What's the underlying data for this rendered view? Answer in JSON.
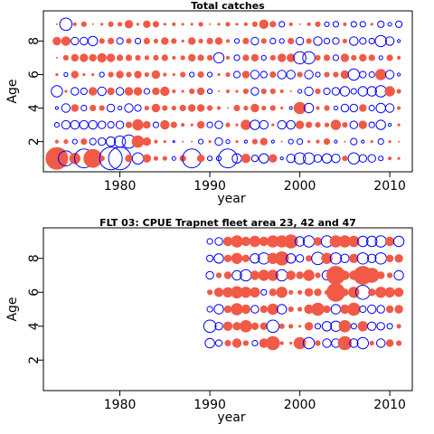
{
  "chart_data": [
    {
      "type": "scatter",
      "subtype": "bubble",
      "title": "Total catches",
      "xlabel": "year",
      "ylabel": "Age",
      "xlim": [
        1971.5,
        2012.5
      ],
      "ylim": [
        0.2,
        9.8
      ],
      "xticks": [
        1980,
        1990,
        2000,
        2010
      ],
      "yticks": [
        2,
        4,
        6,
        8
      ],
      "x_start": 1973,
      "x_end": 2011,
      "ages": [
        1,
        2,
        3,
        4,
        5,
        6,
        7,
        8,
        9
      ],
      "colors": {
        "positive": "#f05a46",
        "negative": "#0000ff"
      },
      "residuals": {
        "1": [
          2.4,
          -1.6,
          1.2,
          -2.0,
          2.0,
          0.6,
          -2.4,
          -2.4,
          0.8,
          -1.2,
          0.9,
          0.5,
          0.5,
          -0.4,
          0.7,
          -2.0,
          0.8,
          -0.5,
          -0.5,
          -2.0,
          -1.0,
          1.0,
          -0.7,
          -1.0,
          0.9,
          -0.3,
          -0.9,
          -1.2,
          -1.2,
          -0.8,
          -1.0,
          -0.9,
          0.6,
          -1.2,
          -0.8,
          -0.8,
          -0.5,
          0.4,
          0.3
        ],
        "2": [
          0.4,
          0.5,
          -0.5,
          0.7,
          -0.7,
          -0.8,
          -1.0,
          -1.2,
          -1.4,
          1.3,
          0.9,
          0.4,
          0.3,
          -0.2,
          0.2,
          0.2,
          -0.5,
          0.3,
          -0.8,
          -0.4,
          0.3,
          -0.3,
          0.6,
          0.8,
          -0.3,
          0.2,
          -0.5,
          -0.6,
          0.3,
          0.4,
          0.7,
          -0.3,
          0.2,
          -0.7,
          -0.3,
          0.3,
          -0.6,
          0.3,
          0.2
        ],
        "3": [
          -0.5,
          -0.9,
          -0.9,
          -0.9,
          -0.9,
          -0.8,
          -0.7,
          -0.8,
          0.7,
          1.2,
          0.8,
          -0.6,
          1.0,
          0.7,
          0.4,
          0.3,
          0.8,
          -0.6,
          -0.8,
          0.5,
          0.3,
          1.1,
          -1.0,
          -0.9,
          0.3,
          -0.9,
          -0.9,
          0.9,
          0.7,
          0.6,
          0.5,
          1.1,
          0.6,
          -0.8,
          0.9,
          -0.6,
          -1.0,
          -0.3,
          0.3
        ],
        "4": [
          -0.3,
          -0.9,
          0.8,
          -0.6,
          0.7,
          0.6,
          -0.8,
          -0.4,
          -0.9,
          -0.7,
          0.5,
          0.9,
          0.6,
          0.5,
          0.7,
          0.8,
          0.8,
          0.6,
          0.4,
          0.2,
          0.7,
          0.5,
          0.9,
          0.5,
          0.6,
          0.3,
          -0.3,
          1.3,
          -1.0,
          0.4,
          0.6,
          -0.4,
          -0.8,
          -0.8,
          0.8,
          -0.6,
          -1.0,
          -0.9,
          0.4
        ],
        "5": [
          -1.2,
          0.3,
          -0.8,
          -0.7,
          0.9,
          -0.9,
          0.8,
          -0.8,
          0.9,
          0.9,
          -0.6,
          0.8,
          1.0,
          0.4,
          0.3,
          0.6,
          0.8,
          -0.5,
          0.2,
          0.4,
          0.3,
          0.6,
          -0.8,
          0.6,
          0.6,
          0.4,
          0.2,
          -0.4,
          -0.9,
          0.6,
          -0.7,
          -0.8,
          -1.0,
          -0.6,
          -1.0,
          -1.0,
          -1.2,
          1.1,
          0.5
        ],
        "6": [
          0.3,
          -0.4,
          0.8,
          0.3,
          0.3,
          -0.5,
          0.6,
          0.8,
          0.6,
          0.8,
          0.5,
          0.9,
          0.4,
          0.3,
          0.6,
          -0.5,
          0.7,
          -0.5,
          0.3,
          0.5,
          -0.7,
          0.8,
          -0.9,
          -0.7,
          0.7,
          -0.9,
          -0.9,
          0.6,
          -0.9,
          -0.5,
          0.6,
          0.6,
          0.9,
          -1.2,
          -0.7,
          -0.6,
          1.2,
          -0.9,
          -0.3
        ],
        "7": [
          0.2,
          0.6,
          0.8,
          0.9,
          0.8,
          1.0,
          0.9,
          0.7,
          0.7,
          0.6,
          0.5,
          0.6,
          0.7,
          0.4,
          0.5,
          0.8,
          0.7,
          0.6,
          -1.1,
          0.4,
          -0.6,
          0.7,
          0.8,
          -0.5,
          0.6,
          0.9,
          0.9,
          -1.3,
          -1.3,
          0.6,
          0.7,
          -0.6,
          0.9,
          0.6,
          0.8,
          0.7,
          -0.4,
          0.7,
          0.4
        ],
        "8": [
          0.9,
          1.0,
          -0.8,
          -0.8,
          -1.0,
          0.6,
          0.7,
          -0.7,
          0.6,
          -0.6,
          0.7,
          0.5,
          0.8,
          0.6,
          0.3,
          0.8,
          0.5,
          0.7,
          0.8,
          0.4,
          -0.5,
          0.7,
          -0.8,
          0.6,
          -0.6,
          -0.5,
          0.7,
          -0.8,
          0.6,
          -0.9,
          -0.6,
          -0.7,
          0.5,
          -0.9,
          -0.7,
          -0.6,
          -1.2,
          -0.9,
          -0.3
        ],
        "9": [
          0.2,
          -1.3,
          0.4,
          0.6,
          0.2,
          0.3,
          0.6,
          0.5,
          0.9,
          0.3,
          0.8,
          0.7,
          0.3,
          0.4,
          0.3,
          0.3,
          0.5,
          0.2,
          0.3,
          0.5,
          0.3,
          0.4,
          0.6,
          1.0,
          0.7,
          -0.6,
          0.4,
          0.2,
          0.4,
          0.6,
          -0.5,
          -0.6,
          0.4,
          -0.6,
          -0.6,
          0.3,
          -0.7,
          -0.4,
          -0.7
        ]
      }
    },
    {
      "type": "scatter",
      "subtype": "bubble",
      "title": "FLT 03: CPUE Trapnet fleet area 23, 42 and 47",
      "xlabel": "year",
      "ylabel": "Age",
      "xlim": [
        1971.5,
        2012.5
      ],
      "ylim": [
        0.2,
        9.8
      ],
      "xticks": [
        1980,
        1990,
        2000,
        2010
      ],
      "yticks": [
        2,
        4,
        6,
        8
      ],
      "x_start": 1990,
      "x_end": 2011,
      "ages": [
        3,
        4,
        5,
        6,
        7,
        8,
        9
      ],
      "colors": {
        "positive": "#f05a46",
        "negative": "#0000ff"
      },
      "residuals": {
        "3": [
          -1.0,
          -0.7,
          0.7,
          1.0,
          0.6,
          -0.6,
          1.0,
          1.5,
          0.4,
          0.3,
          1.3,
          -1.2,
          0.6,
          -0.9,
          -0.9,
          1.5,
          -0.9,
          -1.2,
          0.5,
          -0.9,
          0.8,
          0.6
        ],
        "4": [
          -1.3,
          -0.8,
          1.0,
          0.9,
          1.3,
          0.8,
          0.8,
          -1.3,
          0.6,
          0.5,
          0.3,
          0.9,
          -0.6,
          -1.0,
          -1.1,
          1.3,
          -0.6,
          1.1,
          -0.9,
          -0.8,
          -0.6,
          0.5
        ],
        "5": [
          -0.6,
          -1.0,
          0.8,
          1.3,
          1.0,
          -0.8,
          0.8,
          1.2,
          -1.0,
          0.6,
          0.5,
          1.0,
          1.4,
          0.8,
          -1.0,
          1.0,
          1.4,
          -0.7,
          -0.9,
          -0.8,
          0.8,
          0.9
        ],
        "6": [
          0.6,
          1.0,
          1.1,
          1.3,
          1.2,
          1.1,
          -0.6,
          0.8,
          1.2,
          0.5,
          0.5,
          0.9,
          0.8,
          0.5,
          2.0,
          0.8,
          1.2,
          -1.5,
          0.8,
          1.2,
          1.1,
          1.0
        ],
        "7": [
          -0.8,
          0.6,
          0.8,
          -1.0,
          -1.2,
          1.0,
          1.2,
          1.2,
          -1.2,
          1.0,
          0.8,
          1.2,
          0.6,
          -1.0,
          2.0,
          1.0,
          1.0,
          2.0,
          1.6,
          0.8,
          0.6,
          -1.0
        ],
        "8": [
          -0.7,
          -1.0,
          0.8,
          1.2,
          0.8,
          -1.0,
          -1.2,
          1.2,
          1.5,
          -1.0,
          -0.8,
          0.7,
          -1.3,
          1.2,
          -1.2,
          -0.9,
          1.0,
          -1.2,
          -0.9,
          -1.2,
          0.8,
          0.9
        ],
        "9": [
          -0.6,
          -0.8,
          1.0,
          1.3,
          1.0,
          1.2,
          1.0,
          1.3,
          1.3,
          1.5,
          -1.0,
          -1.2,
          0.9,
          -1.2,
          1.3,
          1.3,
          1.2,
          -1.1,
          -1.1,
          -1.2,
          1.0,
          -1.1
        ]
      }
    }
  ]
}
